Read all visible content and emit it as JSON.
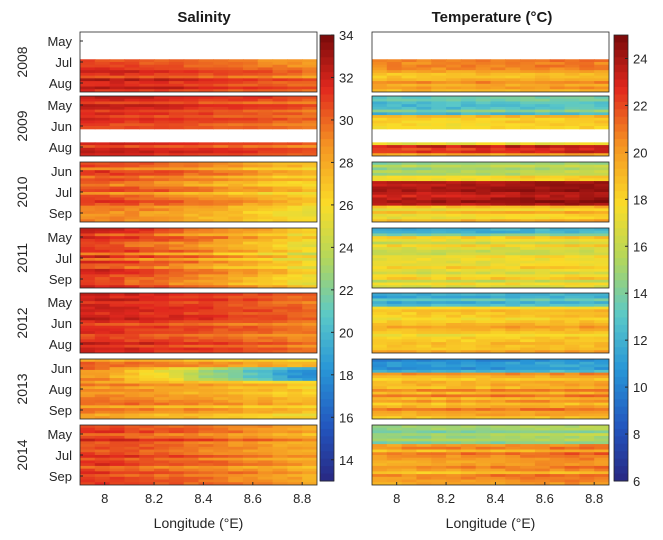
{
  "chart_data": [
    {
      "type": "heatmap",
      "title": "Salinity",
      "xlabel": "Longitude (°E)",
      "ylabel": "",
      "xlim": [
        7.9,
        8.86
      ],
      "xticks": [
        8,
        8.2,
        8.4,
        8.6,
        8.8
      ],
      "xtick_labels": [
        "8",
        "8.2",
        "8.4",
        "8.6",
        "8.8"
      ],
      "colorbar": {
        "min": 13,
        "max": 34,
        "ticks": [
          14,
          16,
          18,
          20,
          22,
          24,
          26,
          28,
          30,
          32,
          34
        ],
        "tick_labels": [
          "14",
          "16",
          "18",
          "20",
          "22",
          "24",
          "26",
          "28",
          "30",
          "32",
          "34"
        ],
        "colormap": "parula-jet"
      },
      "rows": [
        {
          "year": "2008",
          "months": [
            "May",
            "Jul",
            "Aug"
          ],
          "summary": "no data in May-June; ~31-33 west, ~29-30 east"
        },
        {
          "year": "2009",
          "months": [
            "May",
            "Jun",
            "Aug"
          ],
          "summary": "~31-32 west, ~29-30 east; gap in July"
        },
        {
          "year": "2010",
          "months": [
            "Jun",
            "Jul",
            "Sep"
          ],
          "summary": "~29-31 west, ~25-27 east"
        },
        {
          "year": "2011",
          "months": [
            "May",
            "Jul",
            "Sep"
          ],
          "summary": "~30-32 west, ~24-27 east"
        },
        {
          "year": "2012",
          "months": [
            "May",
            "Jun",
            "Aug"
          ],
          "summary": "~30-32 west, ~28-30 east"
        },
        {
          "year": "2013",
          "months": [
            "Jun",
            "Aug",
            "Sep"
          ],
          "summary": "June low ~17-20 east, otherwise ~26-30"
        },
        {
          "year": "2014",
          "months": [
            "May",
            "Jul",
            "Sep"
          ],
          "summary": "~30-32 west, ~27-29 east"
        }
      ]
    },
    {
      "type": "heatmap",
      "title": "Temperature (°C)",
      "xlabel": "Longitude (°E)",
      "ylabel": "",
      "xlim": [
        7.9,
        8.86
      ],
      "xticks": [
        8,
        8.2,
        8.4,
        8.6,
        8.8
      ],
      "xtick_labels": [
        "8",
        "8.2",
        "8.4",
        "8.6",
        "8.8"
      ],
      "colorbar": {
        "min": 6,
        "max": 25,
        "ticks": [
          6,
          8,
          10,
          12,
          14,
          16,
          18,
          20,
          22,
          24
        ],
        "tick_labels": [
          "6",
          "8",
          "10",
          "12",
          "14",
          "16",
          "18",
          "20",
          "22",
          "24"
        ],
        "colormap": "parula-jet"
      },
      "rows": [
        {
          "year": "2008",
          "months": [
            "May",
            "Jul",
            "Aug"
          ],
          "summary": "no data in May-June; ~18-21 with warm bands ~22"
        },
        {
          "year": "2009",
          "months": [
            "May",
            "Jun",
            "Aug"
          ],
          "summary": "early ~11-14, later ~17-20, gap in July, late band ~22"
        },
        {
          "year": "2010",
          "months": [
            "Jun",
            "Jul",
            "Sep"
          ],
          "summary": "warm July ~22-25, early ~14-17"
        },
        {
          "year": "2011",
          "months": [
            "May",
            "Jul",
            "Sep"
          ],
          "summary": "~12-18, mostly ~16-18"
        },
        {
          "year": "2012",
          "months": [
            "May",
            "Jun",
            "Aug"
          ],
          "summary": "early ~11-14, later ~17-20 with warm bands"
        },
        {
          "year": "2013",
          "months": [
            "Jun",
            "Aug",
            "Sep"
          ],
          "summary": "June ~9-12, later ~18-21"
        },
        {
          "year": "2014",
          "months": [
            "May",
            "Jul",
            "Sep"
          ],
          "summary": "May ~12-15, later ~19-22"
        }
      ]
    }
  ]
}
